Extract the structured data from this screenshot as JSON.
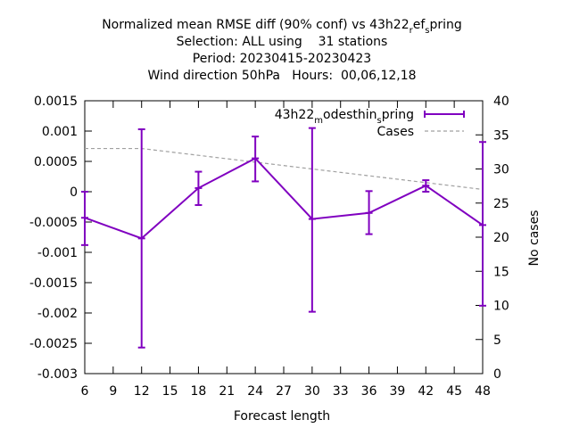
{
  "chart_data": {
    "type": "line",
    "title_lines": [
      "Normalized mean RMSE diff (90% conf) vs 43h22_ref_spring",
      "Selection: ALL using    31 stations",
      "Period: 20230415-20230423",
      "Wind direction 50hPa   Hours:  00,06,12,18"
    ],
    "xlabel": "Forecast length",
    "ylabel": "",
    "y2label": "No cases",
    "xlim": [
      6,
      48
    ],
    "ylim": [
      -0.003,
      0.0015
    ],
    "y2lim": [
      0,
      40
    ],
    "x_ticks": [
      "6",
      "9",
      "12",
      "15",
      "18",
      "21",
      "24",
      "27",
      "30",
      "33",
      "36",
      "39",
      "42",
      "45",
      "48"
    ],
    "y_ticks": [
      "0.0015",
      "0.001",
      "0.0005",
      "0",
      "-0.0005",
      "-0.001",
      "-0.0015",
      "-0.002",
      "-0.0025",
      "-0.003"
    ],
    "y2_ticks": [
      "40",
      "35",
      "30",
      "25",
      "20",
      "15",
      "10",
      "5",
      "0"
    ],
    "legend_position": "top-right",
    "grid": false,
    "series": [
      {
        "name": "43h22_modesthin_spring",
        "color": "#8000c0",
        "style": "errorbars",
        "x": [
          6,
          12,
          18,
          24,
          30,
          36,
          42,
          48
        ],
        "y": [
          -0.00043,
          -0.00077,
          6e-05,
          0.00055,
          -0.00045,
          -0.00035,
          0.0001,
          -0.00055
        ],
        "err_low": [
          -0.00088,
          -0.00257,
          -0.00022,
          0.00017,
          -0.00198,
          -0.0007,
          0.0,
          -0.00188
        ],
        "err_high": [
          0.0,
          0.00103,
          0.00033,
          0.00091,
          0.00105,
          1e-05,
          0.00019,
          0.00082
        ]
      },
      {
        "name": "Cases",
        "color": "#a0a0a0",
        "style": "dashed",
        "axis": "y2",
        "x": [
          6,
          12,
          18,
          24,
          30,
          36,
          42,
          48
        ],
        "y": [
          33,
          33,
          32,
          31,
          30,
          29,
          28,
          27
        ]
      }
    ]
  }
}
